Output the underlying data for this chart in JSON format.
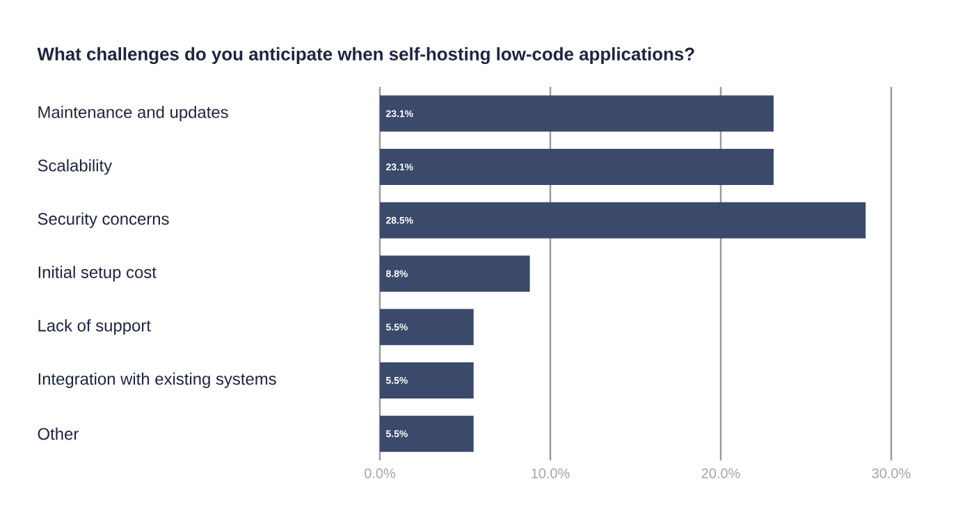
{
  "chart_data": {
    "type": "bar",
    "orientation": "horizontal",
    "title": "What challenges do you anticipate when self-hosting low-code applications?",
    "categories": [
      "Maintenance and updates",
      "Scalability",
      "Security concerns",
      "Initial setup cost",
      "Lack of support",
      "Integration with existing systems",
      "Other"
    ],
    "values": [
      23.1,
      23.1,
      28.5,
      8.8,
      5.5,
      5.5,
      5.5
    ],
    "value_labels": [
      "23.1%",
      "23.1%",
      "28.5%",
      "8.8%",
      "5.5%",
      "5.5%",
      "5.5%"
    ],
    "color": "#3b4a6b",
    "xlim": [
      0,
      30
    ],
    "xticks": [
      {
        "value": 0,
        "label": "0.0%"
      },
      {
        "value": 10,
        "label": "10.0%"
      },
      {
        "value": 20,
        "label": "20.0%"
      },
      {
        "value": 30,
        "label": "30.0%"
      }
    ],
    "grid": "x"
  }
}
